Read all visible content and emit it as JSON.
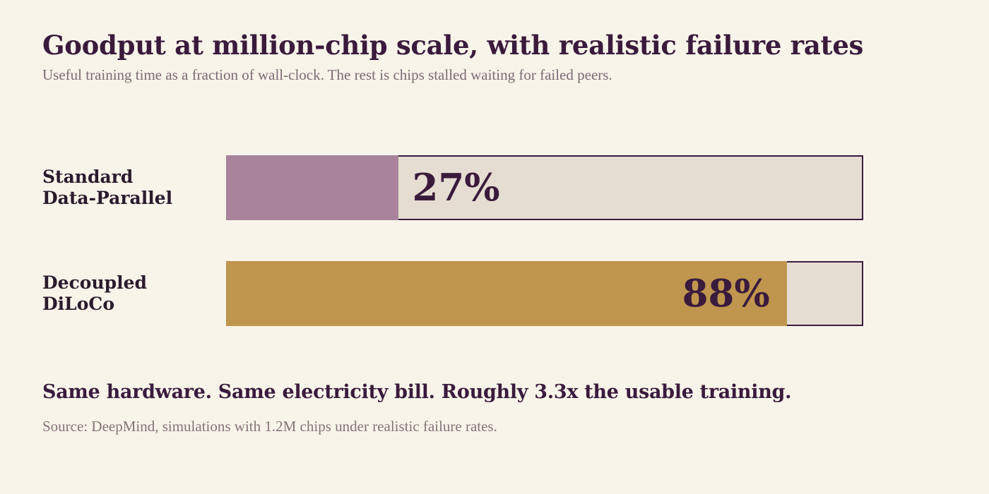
{
  "header": {
    "title": "Goodput at million-chip scale, with realistic failure rates",
    "subtitle": "Useful training time as a fraction of wall-clock. The rest is chips stalled waiting for failed peers."
  },
  "chart_data": {
    "type": "bar",
    "orientation": "horizontal",
    "title": "Goodput at million-chip scale, with realistic failure rates",
    "subtitle": "Useful training time as a fraction of wall-clock. The rest is chips stalled waiting for failed peers.",
    "xlim": [
      0,
      100
    ],
    "unit": "%",
    "grid": false,
    "legend": "none",
    "track_color": "#e6ddd2",
    "series": [
      {
        "label": "Standard\nData-Parallel",
        "value": 27,
        "display": "27%",
        "color": "#a8839b",
        "label_position": "outside"
      },
      {
        "label": "Decoupled\nDiLoCo",
        "value": 88,
        "display": "88%",
        "color": "#c0954d",
        "label_position": "inside"
      }
    ]
  },
  "footer": {
    "callout": "Same hardware. Same electricity bill. Roughly 3.3x the usable training.",
    "source": "Source: DeepMind, simulations with 1.2M chips under realistic failure rates."
  }
}
